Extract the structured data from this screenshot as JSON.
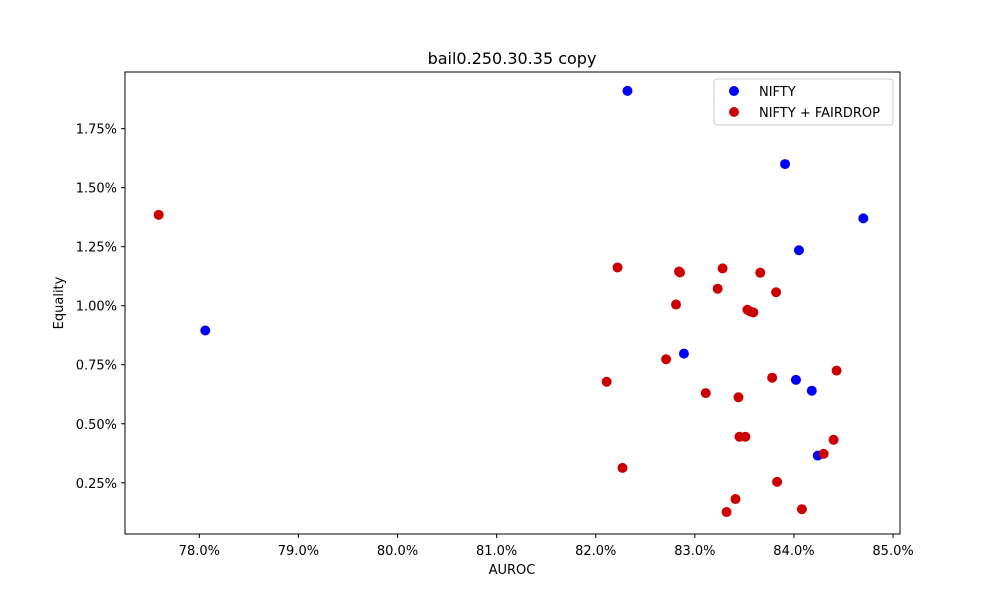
{
  "chart_data": {
    "type": "scatter",
    "title": "bail0.250.30.35 copy",
    "xlabel": "AUROC",
    "ylabel": "Equality",
    "xlim": [
      77.25,
      85.07
    ],
    "ylim": [
      0.033,
      1.99
    ],
    "x_ticks": [
      78.0,
      79.0,
      80.0,
      81.0,
      82.0,
      83.0,
      84.0,
      85.0
    ],
    "x_tick_labels": [
      "78.0%",
      "79.0%",
      "80.0%",
      "81.0%",
      "82.0%",
      "83.0%",
      "84.0%",
      "85.0%"
    ],
    "y_ticks": [
      0.25,
      0.5,
      0.75,
      1.0,
      1.25,
      1.5,
      1.75
    ],
    "y_tick_labels": [
      "0.25%",
      "0.50%",
      "0.75%",
      "1.00%",
      "1.25%",
      "1.50%",
      "1.75%"
    ],
    "grid": false,
    "legend": "top-right",
    "series": [
      {
        "name": "NIFTY",
        "color": "#0000ff",
        "points": [
          [
            82.32,
            1.91
          ],
          [
            83.91,
            1.6
          ],
          [
            84.7,
            1.37
          ],
          [
            84.05,
            1.235
          ],
          [
            78.06,
            0.895
          ],
          [
            82.89,
            0.797
          ],
          [
            84.02,
            0.686
          ],
          [
            84.18,
            0.64
          ],
          [
            84.24,
            0.365
          ]
        ]
      },
      {
        "name": "NIFTY + FAIRDROP",
        "color": "#cc0000",
        "points": [
          [
            77.59,
            1.385
          ],
          [
            82.22,
            1.162
          ],
          [
            82.84,
            1.145
          ],
          [
            82.85,
            1.141
          ],
          [
            83.28,
            1.158
          ],
          [
            83.66,
            1.14
          ],
          [
            83.23,
            1.072
          ],
          [
            83.82,
            1.057
          ],
          [
            82.81,
            1.005
          ],
          [
            83.53,
            0.983
          ],
          [
            83.56,
            0.975
          ],
          [
            83.59,
            0.972
          ],
          [
            82.71,
            0.773
          ],
          [
            82.11,
            0.678
          ],
          [
            83.78,
            0.695
          ],
          [
            84.43,
            0.725
          ],
          [
            83.11,
            0.63
          ],
          [
            83.44,
            0.612
          ],
          [
            83.45,
            0.445
          ],
          [
            83.51,
            0.445
          ],
          [
            84.4,
            0.432
          ],
          [
            84.3,
            0.373
          ],
          [
            82.27,
            0.313
          ],
          [
            83.83,
            0.254
          ],
          [
            83.41,
            0.181
          ],
          [
            83.32,
            0.126
          ],
          [
            84.08,
            0.138
          ]
        ]
      }
    ]
  }
}
